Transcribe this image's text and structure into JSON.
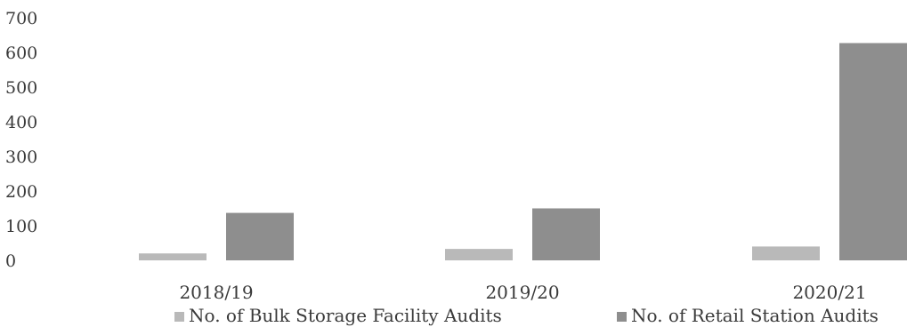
{
  "chart_data": {
    "type": "bar",
    "categories": [
      "2018/19",
      "2019/20",
      "2020/21"
    ],
    "series": [
      {
        "name": "No. of Bulk Storage Facility Audits",
        "values": [
          20,
          33,
          40
        ],
        "color": "#b9b9b9"
      },
      {
        "name": "No. of Retail Station Audits",
        "values": [
          137,
          150,
          627
        ],
        "color": "#8e8e8e"
      }
    ],
    "title": "",
    "xlabel": "",
    "ylabel": "",
    "ylim": [
      0,
      700
    ],
    "yticks": [
      0,
      100,
      200,
      300,
      400,
      500,
      600,
      700
    ],
    "grid": false,
    "legend_position": "bottom"
  }
}
